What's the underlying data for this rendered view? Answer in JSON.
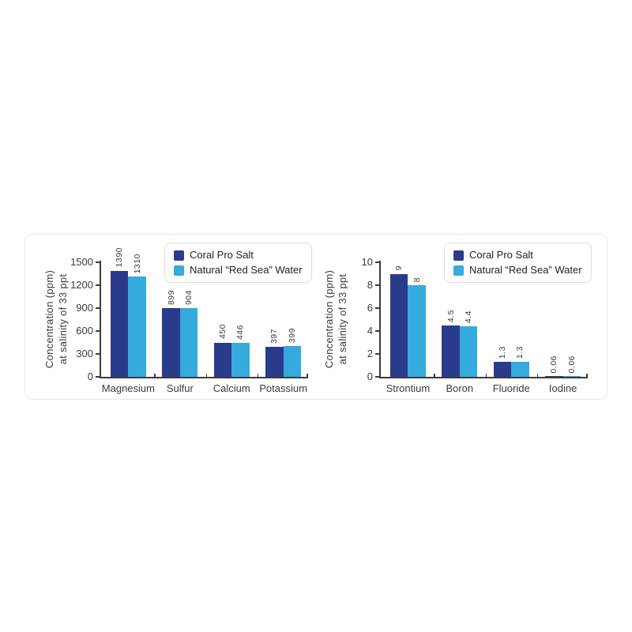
{
  "colors": {
    "series": [
      "#2A3B8C",
      "#35AADC"
    ],
    "axis": "#3C3C3C",
    "text": "#3A3A3A",
    "card_border": "#E7E7E7",
    "legend_border": "#DCDCDC",
    "background": "#FFFFFF"
  },
  "legend": {
    "items": [
      {
        "label": "Coral Pro Salt",
        "color": "#2A3B8C"
      },
      {
        "label": "Natural “Red Sea” Water",
        "color": "#35AADC"
      }
    ]
  },
  "chart_data": [
    {
      "type": "bar",
      "title": "",
      "xlabel": "",
      "ylabel": "Concentration (ppm)\nat salinity of 33 ppt",
      "categories": [
        "Magnesium",
        "Sulfur",
        "Calcium",
        "Potassium"
      ],
      "series": [
        {
          "name": "Coral Pro Salt",
          "values": [
            1390,
            899,
            450,
            397
          ]
        },
        {
          "name": "Natural “Red Sea” Water",
          "values": [
            1310,
            904,
            446,
            399
          ]
        }
      ],
      "value_labels": [
        [
          "1390",
          "899",
          "450",
          "397"
        ],
        [
          "1310",
          "904",
          "446",
          "399"
        ]
      ],
      "ylim": [
        0,
        1500
      ],
      "yticks": [
        0,
        300,
        600,
        900,
        1200,
        1500
      ],
      "grid": false,
      "legend_position": "upper right"
    },
    {
      "type": "bar",
      "title": "",
      "xlabel": "",
      "ylabel": "Concentration (ppm)\nat salinity of 33 ppt",
      "categories": [
        "Strontium",
        "Boron",
        "Fluoride",
        "Iodine"
      ],
      "series": [
        {
          "name": "Coral Pro Salt",
          "values": [
            9,
            4.5,
            1.3,
            0.06
          ]
        },
        {
          "name": "Natural “Red Sea” Water",
          "values": [
            8,
            4.4,
            1.3,
            0.06
          ]
        }
      ],
      "value_labels": [
        [
          "9",
          "4.5",
          "1.3",
          "0.06"
        ],
        [
          "8",
          "4.4",
          "1.3",
          "0.06"
        ]
      ],
      "ylim": [
        0,
        10
      ],
      "yticks": [
        0,
        2,
        4,
        6,
        8,
        10
      ],
      "grid": false,
      "legend_position": "upper right"
    }
  ]
}
